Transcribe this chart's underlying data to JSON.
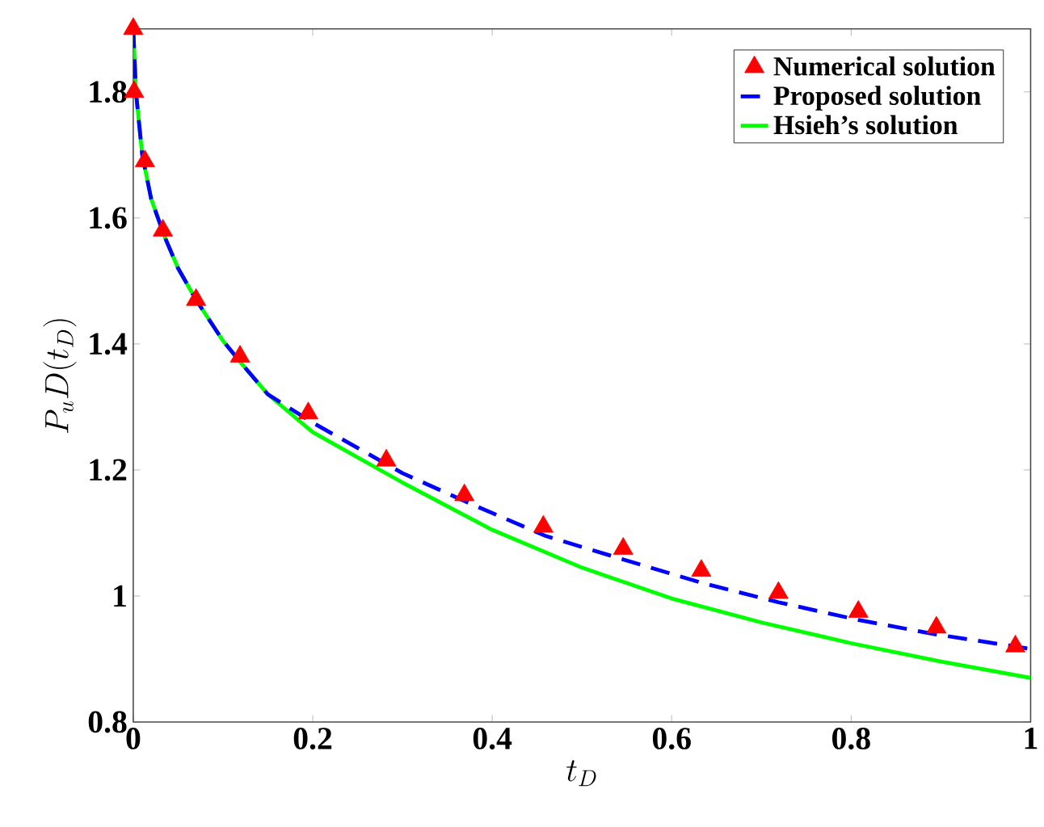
{
  "chart_data": {
    "type": "line",
    "xlabel": "t_D",
    "ylabel": "P_uD(t_D)",
    "xlim": [
      0,
      1
    ],
    "ylim": [
      0.8,
      1.9
    ],
    "xticks": [
      0,
      0.2,
      0.4,
      0.6,
      0.8,
      1
    ],
    "yticks": [
      0.8,
      1,
      1.2,
      1.4,
      1.6,
      1.8
    ],
    "legend": "top right",
    "grid": false,
    "series": [
      {
        "name": "Numerical solution",
        "type": "scatter",
        "marker": "triangle",
        "color": "#ff0000",
        "x": [
          0,
          0.001,
          0.013,
          0.033,
          0.07,
          0.119,
          0.195,
          0.282,
          0.369,
          0.457,
          0.546,
          0.633,
          0.719,
          0.808,
          0.895,
          0.983
        ],
        "values": [
          1.9,
          1.8,
          1.69,
          1.58,
          1.47,
          1.38,
          1.29,
          1.215,
          1.16,
          1.11,
          1.075,
          1.04,
          1.005,
          0.975,
          0.95,
          0.92
        ]
      },
      {
        "name": "Proposed solution",
        "line_style": "dashed",
        "color": "#0000ff",
        "x": [
          0,
          0.003,
          0.01,
          0.02,
          0.035,
          0.05,
          0.07,
          0.1,
          0.12,
          0.15,
          0.2,
          0.25,
          0.3,
          0.37,
          0.46,
          0.546,
          0.633,
          0.719,
          0.808,
          0.895,
          1
        ],
        "values": [
          1.9,
          1.8,
          1.7,
          1.63,
          1.57,
          1.52,
          1.47,
          1.405,
          1.37,
          1.32,
          1.275,
          1.235,
          1.195,
          1.15,
          1.095,
          1.058,
          1.021,
          0.99,
          0.962,
          0.939,
          0.916
        ]
      },
      {
        "name": "Hsieh’s solution",
        "line_style": "solid",
        "color": "#00ff00",
        "x": [
          0,
          0.003,
          0.01,
          0.02,
          0.035,
          0.05,
          0.07,
          0.1,
          0.12,
          0.15,
          0.2,
          0.3,
          0.4,
          0.5,
          0.6,
          0.7,
          0.8,
          0.9,
          1
        ],
        "values": [
          1.9,
          1.8,
          1.7,
          1.63,
          1.57,
          1.52,
          1.47,
          1.405,
          1.37,
          1.32,
          1.26,
          1.18,
          1.105,
          1.045,
          0.996,
          0.958,
          0.925,
          0.896,
          0.87
        ]
      }
    ]
  }
}
